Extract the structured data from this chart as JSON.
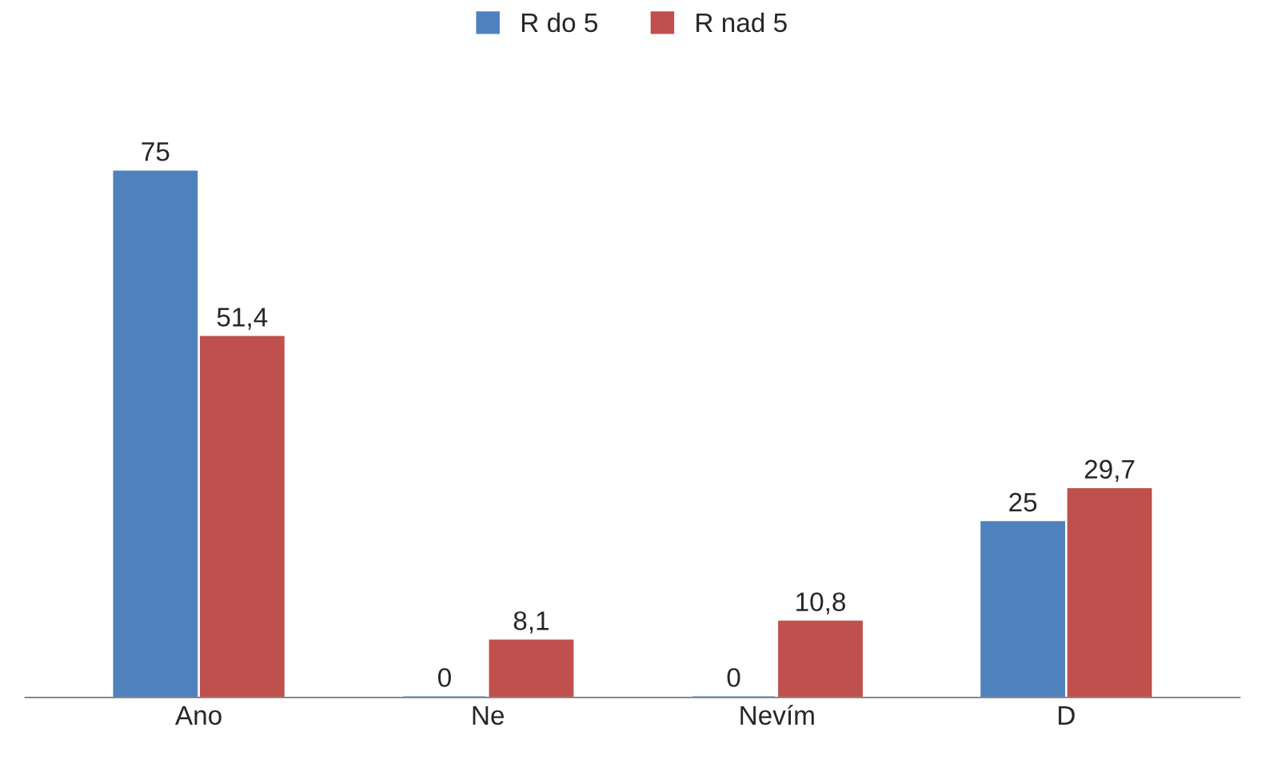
{
  "chart_data": {
    "type": "bar",
    "categories": [
      "Ano",
      "Ne",
      "Nevím",
      "D"
    ],
    "series": [
      {
        "name": "R do 5",
        "color": "#4f81bd",
        "values": [
          75,
          0,
          0,
          25
        ],
        "value_labels": [
          "75",
          "0",
          "0",
          "25"
        ]
      },
      {
        "name": "R nad 5",
        "color": "#c0504d",
        "values": [
          51.4,
          8.1,
          10.8,
          29.7
        ],
        "value_labels": [
          "51,4",
          "8,1",
          "10,8",
          "29,7"
        ]
      }
    ],
    "legend": "top",
    "grid": false
  }
}
